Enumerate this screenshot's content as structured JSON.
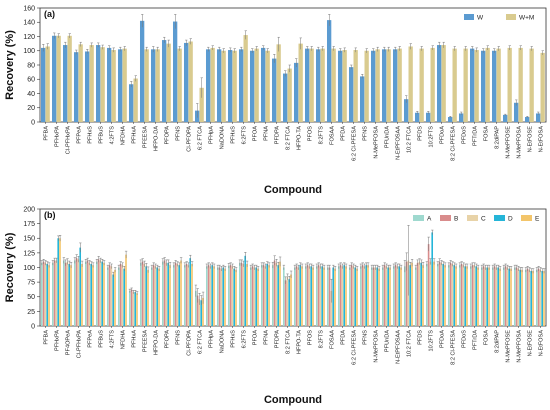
{
  "chart_data": [
    {
      "panel": "(a)",
      "type": "bar",
      "xlabel": "Compound",
      "ylabel": "Recovery (%)",
      "ylim": [
        0,
        160
      ],
      "yticks": [
        0,
        20,
        40,
        60,
        80,
        100,
        120,
        140,
        160
      ],
      "legend_position": "top-right",
      "categories": [
        "PFBA",
        "PFHxPA",
        "Cl-PFHxPA",
        "PFPeA",
        "PFHxS",
        "PFBuS",
        "4:2FTS",
        "NFDHA",
        "PFHxA",
        "PFEESA",
        "HFPO-DA",
        "PFOPA",
        "PFNS",
        "Cl-PFOPA",
        "6:2 FTCA",
        "PFHpA",
        "NaDONA",
        "PFHxS",
        "6:2FTS",
        "PFOA",
        "PFNA",
        "PFDPA",
        "8:2 FTCA",
        "HFPO-TA",
        "PFOS",
        "8:2FTS",
        "FOSAA",
        "PFDA",
        "6:2 Cl-PFESA",
        "PFNS",
        "N-MePFOSA",
        "PFUnDA",
        "N-EtPFOSAA",
        "10:2 FTCA",
        "PFDS",
        "10:2FTS",
        "PFDoA",
        "8:2 Cl-PFESA",
        "PFDoS",
        "PFTrDA",
        "FOSA",
        "8:2diPAP",
        "N-MePFOSE",
        "N-MePFOSA",
        "N-EtFOSE",
        "N-EtFOSA"
      ],
      "series": [
        {
          "name": "W",
          "color": "#5b9bd1",
          "values": [
            104,
            121,
            108,
            98,
            99,
            108,
            104,
            102,
            53,
            142,
            102,
            115,
            141,
            111,
            16,
            102,
            102,
            101,
            102,
            100,
            104,
            89,
            68,
            83,
            103,
            102,
            143,
            100,
            77,
            64,
            100,
            102,
            102,
            32,
            13,
            13,
            108,
            7,
            12,
            103,
            100,
            100,
            10,
            27,
            7,
            12
          ],
          "errors": [
            5,
            4,
            4,
            3,
            3,
            3,
            3,
            3,
            4,
            9,
            4,
            4,
            10,
            4,
            10,
            3,
            3,
            3,
            3,
            3,
            3,
            6,
            4,
            6,
            3,
            3,
            8,
            3,
            3,
            3,
            3,
            3,
            3,
            5,
            2,
            2,
            4,
            1,
            2,
            3,
            3,
            3,
            1,
            4,
            1,
            2
          ]
        },
        {
          "name": "W+M",
          "color": "#d9cb8f",
          "values": [
            106,
            121,
            121,
            109,
            108,
            105,
            101,
            103,
            61,
            102,
            102,
            110,
            103,
            113,
            48,
            104,
            100,
            100,
            122,
            103,
            100,
            109,
            75,
            110,
            103,
            103,
            103,
            101,
            101,
            100,
            102,
            102,
            103,
            106,
            103,
            104,
            108,
            103,
            103,
            101,
            104,
            103,
            104,
            104,
            103,
            97
          ],
          "errors": [
            4,
            3,
            3,
            3,
            3,
            3,
            3,
            3,
            4,
            3,
            3,
            5,
            3,
            4,
            14,
            3,
            3,
            3,
            6,
            3,
            3,
            10,
            5,
            8,
            3,
            3,
            3,
            3,
            3,
            3,
            3,
            3,
            3,
            4,
            3,
            3,
            4,
            3,
            3,
            3,
            3,
            3,
            3,
            3,
            3,
            3
          ]
        }
      ]
    },
    {
      "panel": "(b)",
      "type": "bar",
      "xlabel": "Compound",
      "ylabel": "Recovery (%)",
      "ylim": [
        0,
        200
      ],
      "yticks": [
        0,
        25,
        50,
        75,
        100,
        125,
        150,
        175,
        200
      ],
      "legend_position": "top-right",
      "categories": [
        "PFBA",
        "PFHxPA",
        "PF4OPeA",
        "Cl-PFHxPA",
        "PFPeA",
        "PFBuS",
        "4:2FTS",
        "NFDHA",
        "PFHxA",
        "PFEESA",
        "HFPO-DA",
        "PFOPA",
        "PFNS",
        "Cl-PFOPA",
        "6:2 FTCA",
        "PFHpA",
        "NaDONA",
        "PFHxS",
        "6:2FTS",
        "PFOA",
        "PFNA",
        "PFDPA",
        "8:2 FTCA",
        "HFPO-TA",
        "PFOS",
        "8:2FTS",
        "FOSAA",
        "PFDA",
        "6:2 Cl-PFESA",
        "PFNS",
        "N-MePFOSA",
        "PFUnDA",
        "N-EtPFOSAA",
        "10:2 FTCA",
        "PFDS",
        "10:2FTS",
        "PFDoA",
        "8:2 Cl-PFESA",
        "PFDoS",
        "PFTrDA",
        "FOSA",
        "8:2diPAP",
        "N-MePFOSE",
        "N-MePFOSA",
        "N-EtFOSE",
        "N-EtFOSA"
      ],
      "series": [
        {
          "name": "A",
          "color": "#9fd9cf",
          "values": [
            108,
            108,
            112,
            112,
            110,
            110,
            100,
            100,
            60,
            108,
            100,
            110,
            104,
            104,
            60,
            102,
            100,
            103,
            108,
            100,
            104,
            104,
            100,
            100,
            102,
            102,
            100,
            102,
            100,
            102,
            100,
            100,
            102,
            102,
            100,
            106,
            106,
            104,
            104,
            102,
            100,
            100,
            100,
            100,
            96,
            96
          ],
          "errors": [
            4,
            4,
            5,
            5,
            4,
            4,
            4,
            4,
            3,
            5,
            4,
            5,
            4,
            4,
            10,
            4,
            4,
            4,
            5,
            4,
            4,
            5,
            4,
            4,
            4,
            4,
            4,
            4,
            4,
            4,
            4,
            4,
            4,
            10,
            4,
            4,
            4,
            4,
            4,
            4,
            4,
            4,
            4,
            4,
            4,
            4
          ]
        },
        {
          "name": "B",
          "color": "#d98c8c",
          "values": [
            110,
            112,
            108,
            116,
            112,
            114,
            104,
            106,
            62,
            110,
            104,
            112,
            108,
            106,
            52,
            104,
            100,
            104,
            108,
            102,
            104,
            112,
            78,
            102,
            104,
            104,
            100,
            104,
            104,
            104,
            100,
            104,
            104,
            110,
            108,
            140,
            110,
            108,
            106,
            104,
            102,
            102,
            102,
            100,
            98,
            98
          ],
          "errors": [
            4,
            4,
            5,
            6,
            4,
            5,
            4,
            4,
            3,
            5,
            4,
            5,
            4,
            4,
            12,
            4,
            4,
            4,
            5,
            4,
            4,
            8,
            6,
            4,
            4,
            4,
            4,
            4,
            4,
            4,
            4,
            4,
            4,
            15,
            5,
            12,
            5,
            4,
            4,
            4,
            4,
            4,
            4,
            4,
            4,
            4
          ]
        },
        {
          "name": "C",
          "color": "#e8d3a8",
          "values": [
            108,
            112,
            110,
            114,
            108,
            112,
            102,
            104,
            58,
            106,
            102,
            108,
            106,
            104,
            46,
            102,
            98,
            102,
            106,
            100,
            102,
            108,
            84,
            100,
            102,
            102,
            60,
            102,
            102,
            102,
            100,
            102,
            102,
            112,
            110,
            110,
            108,
            106,
            104,
            104,
            100,
            100,
            100,
            98,
            96,
            96
          ],
          "errors": [
            4,
            4,
            5,
            5,
            4,
            4,
            4,
            4,
            3,
            5,
            4,
            5,
            4,
            4,
            10,
            4,
            4,
            4,
            5,
            4,
            4,
            6,
            5,
            4,
            4,
            4,
            20,
            4,
            4,
            4,
            4,
            4,
            4,
            60,
            5,
            5,
            4,
            4,
            4,
            4,
            4,
            4,
            4,
            4,
            4,
            4
          ]
        },
        {
          "name": "D",
          "color": "#25b5d8",
          "values": [
            106,
            150,
            106,
            134,
            106,
            110,
            88,
            98,
            58,
            102,
            100,
            108,
            104,
            116,
            44,
            104,
            100,
            98,
            120,
            100,
            106,
            104,
            80,
            104,
            102,
            102,
            100,
            104,
            100,
            104,
            100,
            100,
            102,
            104,
            108,
            160,
            106,
            104,
            102,
            102,
            100,
            100,
            98,
            96,
            94,
            94
          ],
          "errors": [
            4,
            4,
            5,
            8,
            4,
            4,
            4,
            4,
            3,
            5,
            4,
            5,
            4,
            5,
            8,
            4,
            4,
            4,
            6,
            4,
            4,
            5,
            5,
            4,
            4,
            4,
            4,
            4,
            4,
            4,
            4,
            4,
            4,
            5,
            5,
            4,
            4,
            4,
            4,
            4,
            4,
            4,
            4,
            4,
            4,
            4
          ]
        },
        {
          "name": "E",
          "color": "#f3c56a",
          "values": [
            104,
            150,
            104,
            106,
            104,
            108,
            96,
            122,
            56,
            96,
            98,
            104,
            112,
            106,
            48,
            102,
            98,
            96,
            106,
            98,
            104,
            110,
            88,
            102,
            100,
            100,
            98,
            102,
            98,
            104,
            98,
            100,
            100,
            108,
            104,
            110,
            104,
            102,
            102,
            100,
            100,
            98,
            98,
            96,
            94,
            94
          ],
          "errors": [
            4,
            5,
            5,
            5,
            4,
            4,
            4,
            6,
            3,
            5,
            4,
            5,
            5,
            4,
            10,
            4,
            4,
            4,
            5,
            4,
            4,
            8,
            6,
            4,
            4,
            4,
            4,
            4,
            4,
            4,
            4,
            4,
            4,
            6,
            5,
            5,
            4,
            4,
            4,
            4,
            4,
            4,
            4,
            4,
            4,
            4
          ]
        }
      ]
    }
  ]
}
